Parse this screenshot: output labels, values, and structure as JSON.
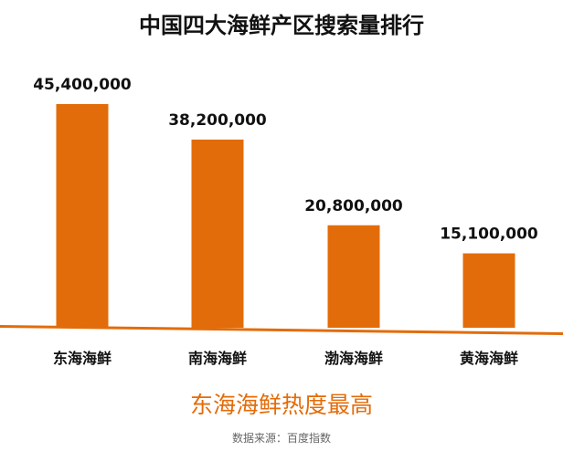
{
  "chart_data": {
    "type": "bar",
    "title": "中国四大海鲜产区搜索量排行",
    "categories": [
      "东海海鲜",
      "南海海鲜",
      "渤海海鲜",
      "黄海海鲜"
    ],
    "values": [
      45400000,
      38200000,
      20800000,
      15100000
    ],
    "value_labels": [
      "45,400,000",
      "38,200,000",
      "20,800,000",
      "15,100,000"
    ],
    "xlabel": "",
    "ylabel": "",
    "ylim": [
      0,
      50000000
    ],
    "grid": false,
    "legend": "none",
    "bar_color": "#e36c0a",
    "axis_color": "#e36c0a"
  },
  "annotation": "东海海鲜热度最高",
  "source": "数据来源：百度指数"
}
